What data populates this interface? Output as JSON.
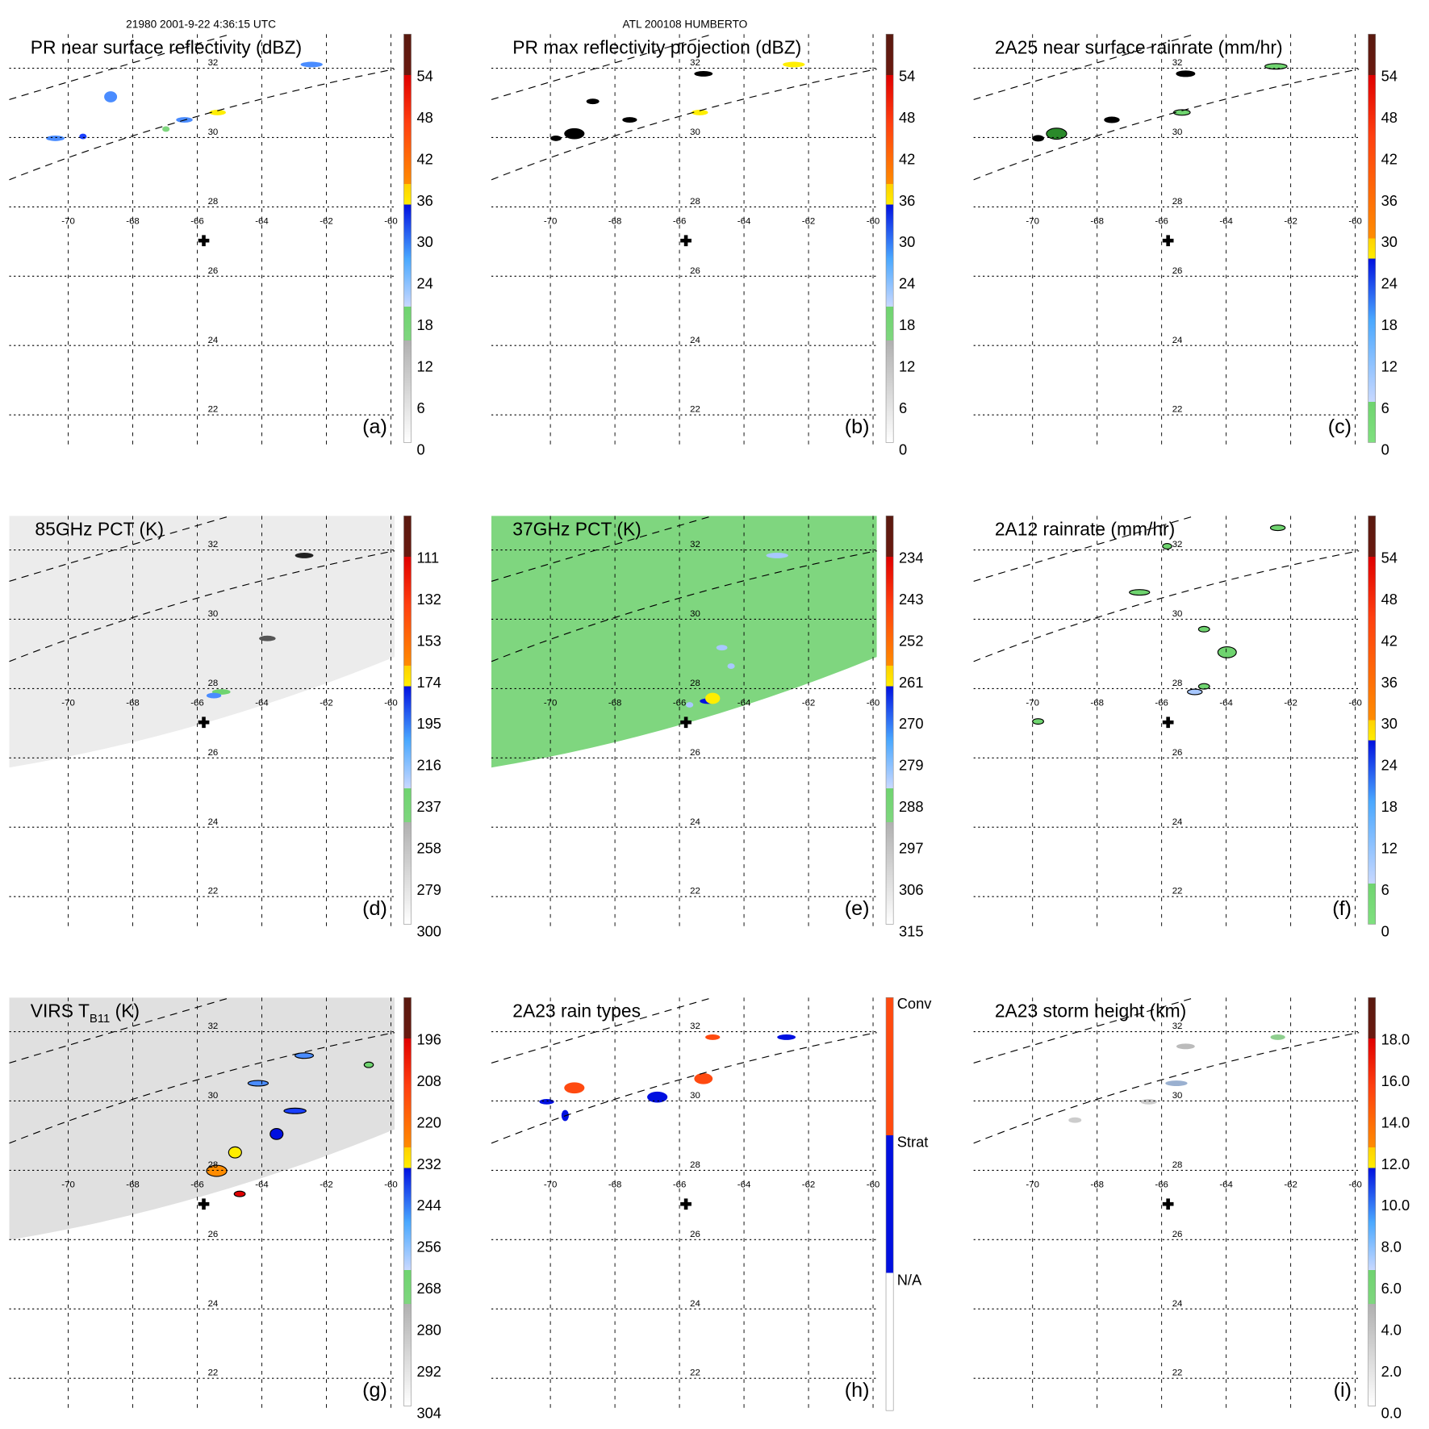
{
  "header": {
    "left": "21980 2001-9-22 4:36:15 UTC",
    "center": "ATL 200108 HUMBERTO"
  },
  "map": {
    "lon_labels": [
      "-70",
      "-68",
      "-66",
      "-64",
      "-62",
      "-60"
    ],
    "lat_labels": [
      "32",
      "30",
      "28",
      "26",
      "24",
      "22"
    ],
    "center_marker": "plus-icon"
  },
  "panels": [
    {
      "id": "a",
      "title": "PR near surface reflectivity (dBZ)",
      "label": "(a)",
      "palette": "dbz",
      "fill": "none",
      "cbar": [
        "0",
        "6",
        "12",
        "18",
        "24",
        "30",
        "36",
        "42",
        "48",
        "54"
      ]
    },
    {
      "id": "b",
      "title": "PR max reflectivity projection (dBZ)",
      "label": "(b)",
      "palette": "dbz",
      "fill": "none",
      "cbar": [
        "0",
        "6",
        "12",
        "18",
        "24",
        "30",
        "36",
        "42",
        "48",
        "54"
      ]
    },
    {
      "id": "c",
      "title": "2A25 near surface rainrate (mm/hr)",
      "label": "(c)",
      "palette": "rain",
      "fill": "none",
      "cbar": [
        "0",
        "6",
        "12",
        "18",
        "24",
        "30",
        "36",
        "42",
        "48",
        "54"
      ]
    },
    {
      "id": "d",
      "title": "85GHz PCT (K)",
      "label": "(d)",
      "palette": "dbz",
      "fill": "#ececec",
      "cbar": [
        "300",
        "279",
        "258",
        "237",
        "216",
        "195",
        "174",
        "153",
        "132",
        "111"
      ]
    },
    {
      "id": "e",
      "title": "37GHz PCT (K)",
      "label": "(e)",
      "palette": "dbz",
      "fill": "#7fd67f",
      "cbar": [
        "315",
        "306",
        "297",
        "288",
        "279",
        "270",
        "261",
        "252",
        "243",
        "234"
      ]
    },
    {
      "id": "f",
      "title": "2A12 rainrate (mm/hr)",
      "label": "(f)",
      "palette": "rain",
      "fill": "none",
      "cbar": [
        "0",
        "6",
        "12",
        "18",
        "24",
        "30",
        "36",
        "42",
        "48",
        "54"
      ]
    },
    {
      "id": "g",
      "title": "VIRS T",
      "title_sub": "B11",
      "title_end": " (K)",
      "label": "(g)",
      "palette": "dbz",
      "fill": "#e0e0e0",
      "cbar": [
        "304",
        "292",
        "280",
        "268",
        "256",
        "244",
        "232",
        "220",
        "208",
        "196"
      ]
    },
    {
      "id": "h",
      "title": "2A23 rain types",
      "label": "(h)",
      "palette": "types",
      "fill": "none",
      "cbar_cats": [
        "N/A",
        "Strat",
        "Conv"
      ]
    },
    {
      "id": "i",
      "title": "2A23 storm height (km)",
      "label": "(i)",
      "palette": "dbz",
      "fill": "none",
      "cbar": [
        "0.0",
        "2.0",
        "4.0",
        "6.0",
        "8.0",
        "10.0",
        "12.0",
        "14.0",
        "16.0",
        "18.0"
      ]
    }
  ],
  "colors": {
    "grey": "#b0b0b0",
    "green": "#6fd46f",
    "lightblue": "#a8c8ff",
    "blue": "#0010e0",
    "yellow": "#ffee00",
    "orange": "#ff8c00",
    "red": "#e00000",
    "brown": "#5a1a10",
    "conv": "#ff4a10"
  }
}
